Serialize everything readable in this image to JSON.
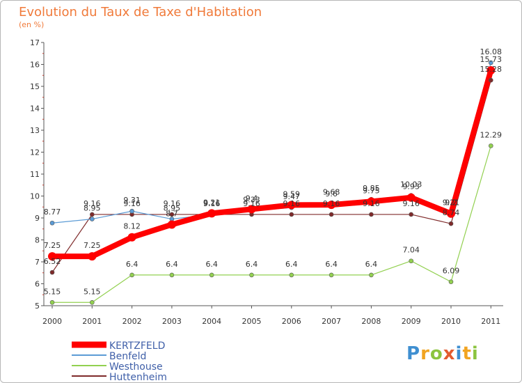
{
  "header": {
    "title": "Evolution du Taux de Taxe d'Habitation",
    "subtitle": "(en %)"
  },
  "logo": {
    "text": "Proxiti"
  },
  "chart_data": {
    "type": "line",
    "title": "Evolution du Taux de Taxe d'Habitation",
    "subtitle": "(en %)",
    "xlabel": "",
    "ylabel": "",
    "x": [
      "2000",
      "2001",
      "2002",
      "2003",
      "2004",
      "2005",
      "2006",
      "2007",
      "2008",
      "2009",
      "2010",
      "2011"
    ],
    "ylim": [
      5,
      17
    ],
    "yticks": [
      5,
      6,
      7,
      8,
      9,
      10,
      11,
      12,
      13,
      14,
      15,
      16,
      17
    ],
    "grid": false,
    "legend_position": "bottom-left",
    "series": [
      {
        "name": "KERTZFELD",
        "color": "#ff0000",
        "values": [
          7.25,
          7.25,
          8.12,
          8.7,
          9.21,
          9.4,
          9.59,
          9.6,
          9.75,
          9.93,
          9.2,
          15.73
        ],
        "labels": [
          "7.25",
          "7.25",
          "8.12",
          "8.7",
          "9.21",
          "9.4",
          "9.59",
          "9.6",
          "9.75",
          "9.93",
          "9.2",
          "15.73"
        ]
      },
      {
        "name": "Benfeld",
        "color": "#5b9bd5",
        "values": [
          8.77,
          8.95,
          9.31,
          8.95,
          9.16,
          9.33,
          9.47,
          9.68,
          9.85,
          10.03,
          9.21,
          16.08
        ],
        "labels": [
          "8.77",
          "8.95",
          "9.31",
          "8.95",
          "9.16",
          "9.33",
          "9.47",
          "9.68",
          "9.85",
          "10.03",
          "9.21",
          "16.08"
        ]
      },
      {
        "name": "Westhouse",
        "color": "#92d050",
        "values": [
          5.15,
          5.15,
          6.4,
          6.4,
          6.4,
          6.4,
          6.4,
          6.4,
          6.4,
          7.04,
          6.09,
          12.29
        ],
        "labels": [
          "5.15",
          "5.15",
          "6.4",
          "6.4",
          "6.4",
          "6.4",
          "6.4",
          "6.4",
          "6.4",
          "7.04",
          "6.09",
          "12.29"
        ]
      },
      {
        "name": "Huttenheim",
        "color": "#7f2a2a",
        "values": [
          6.52,
          9.16,
          9.16,
          9.16,
          9.16,
          9.16,
          9.16,
          9.16,
          9.16,
          9.16,
          8.74,
          15.28
        ],
        "labels": [
          "6.52",
          "9.16",
          "9.16",
          "9.16",
          "9.16",
          "9.16",
          "9.16",
          "9.16",
          "9.16",
          "9.16",
          "8.74",
          "15.28"
        ]
      }
    ]
  }
}
